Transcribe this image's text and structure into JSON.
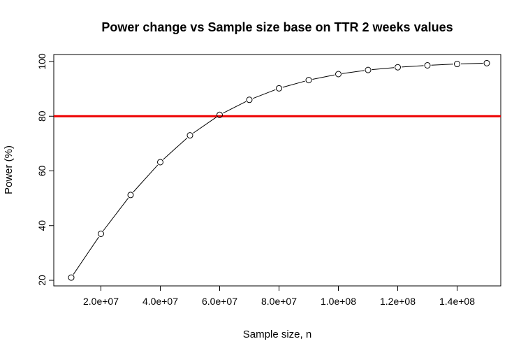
{
  "chart_data": {
    "type": "line",
    "title": "Power change vs Sample size base on TTR 2 weeks values",
    "xlabel": "Sample size, n",
    "ylabel": "Power (%)",
    "x": [
      10000000,
      20000000,
      30000000,
      40000000,
      50000000,
      60000000,
      70000000,
      80000000,
      90000000,
      100000000,
      110000000,
      120000000,
      130000000,
      140000000,
      150000000
    ],
    "series": [
      {
        "values": [
          21.0,
          37.0,
          51.2,
          63.2,
          73.0,
          80.5,
          86.0,
          90.2,
          93.2,
          95.4,
          96.9,
          97.9,
          98.6,
          99.1,
          99.4
        ]
      }
    ],
    "xlim": [
      10000000,
      150000000
    ],
    "ylim": [
      20,
      100
    ],
    "x_ticks": [
      20000000,
      40000000,
      60000000,
      80000000,
      100000000,
      120000000,
      140000000
    ],
    "x_tick_labels": [
      "2.0e+07",
      "4.0e+07",
      "6.0e+07",
      "8.0e+07",
      "1.0e+08",
      "1.2e+08",
      "1.4e+08"
    ],
    "y_ticks": [
      20,
      40,
      60,
      80,
      100
    ],
    "y_tick_labels": [
      "20",
      "40",
      "60",
      "80",
      "100"
    ],
    "reference_line": {
      "y": 80,
      "color": "#ee0000"
    },
    "line_color": "#000000",
    "marker": "open-circle",
    "grid": false
  }
}
